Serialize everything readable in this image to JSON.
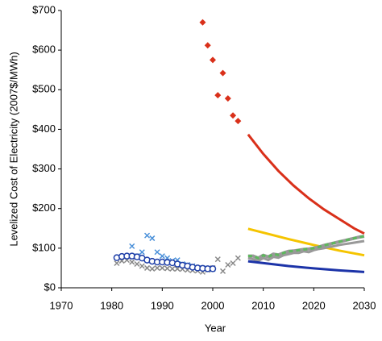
{
  "chart_data": {
    "type": "scatter",
    "ylabel": "Levelized Cost of Electricity (2007$/MWh)",
    "xlabel": "Year",
    "xlim": [
      1970,
      2030
    ],
    "xticks": [
      1970,
      1980,
      1990,
      2000,
      2010,
      2020,
      2030
    ],
    "ylim": [
      0,
      700
    ],
    "yticks": [
      {
        "value": 0,
        "label": "$0"
      },
      {
        "value": 100,
        "label": "$100"
      },
      {
        "value": 200,
        "label": "$200"
      },
      {
        "value": 300,
        "label": "$300"
      },
      {
        "value": 400,
        "label": "$400"
      },
      {
        "value": 500,
        "label": "$500"
      },
      {
        "value": 600,
        "label": "$600"
      },
      {
        "value": 700,
        "label": "$700"
      }
    ],
    "series": [
      {
        "marker": "diamond",
        "color": "#d9301a",
        "x": [
          1998,
          1999,
          2000,
          2001,
          2002,
          2003,
          2004,
          2005
        ],
        "values": [
          670,
          612,
          575,
          486,
          542,
          478,
          435,
          421
        ]
      },
      {
        "marker": "x",
        "color": "#888888",
        "x": [
          1981,
          1982,
          1983,
          1984,
          1985,
          1986,
          1987,
          1988,
          1989,
          1990,
          1991,
          1992,
          1993,
          1994,
          1995,
          1996,
          1997,
          1998,
          1999,
          2000,
          2001,
          2002,
          2003,
          2004,
          2005
        ],
        "values": [
          62,
          68,
          70,
          65,
          60,
          55,
          50,
          48,
          50,
          50,
          49,
          48,
          48,
          47,
          45,
          44,
          43,
          40,
          45,
          50,
          72,
          42,
          58,
          62,
          75
        ]
      },
      {
        "marker": "x",
        "color": "#4a90d9",
        "x": [
          1984,
          1985,
          1986,
          1987,
          1988,
          1989,
          1990,
          1991,
          1992,
          1993,
          1994,
          1995,
          1996,
          1997,
          1998,
          1999,
          2000
        ],
        "values": [
          105,
          80,
          90,
          132,
          125,
          90,
          80,
          75,
          68,
          70,
          60,
          58,
          55,
          50,
          50,
          48,
          47
        ]
      },
      {
        "marker": "circle",
        "color": "#1f3fa8",
        "x": [
          1981,
          1982,
          1983,
          1984,
          1985,
          1986,
          1987,
          1988,
          1989,
          1990,
          1991,
          1992,
          1993,
          1994,
          1995,
          1996,
          1997,
          1998,
          1999,
          2000
        ],
        "values": [
          76,
          79,
          80,
          80,
          78,
          75,
          70,
          67,
          65,
          65,
          64,
          63,
          60,
          57,
          55,
          52,
          50,
          49,
          48,
          48
        ]
      },
      {
        "marker": "line",
        "color": "#d9301a",
        "x": [
          2007,
          2010,
          2013,
          2016,
          2019,
          2022,
          2025,
          2028,
          2030
        ],
        "values": [
          387,
          338,
          295,
          258,
          226,
          198,
          174,
          150,
          137
        ]
      },
      {
        "marker": "line",
        "color": "#f5c400",
        "x": [
          2007,
          2015,
          2020,
          2025,
          2030
        ],
        "values": [
          149,
          123,
          108,
          94,
          82
        ]
      },
      {
        "marker": "line",
        "color": "#999999",
        "x": [
          2007,
          2008,
          2009,
          2010,
          2011,
          2012,
          2013,
          2014,
          2015,
          2016,
          2017,
          2018,
          2019,
          2020,
          2021,
          2022,
          2023,
          2024,
          2025,
          2026,
          2027,
          2028,
          2029,
          2030
        ],
        "values": [
          75,
          72,
          68,
          75,
          70,
          78,
          76,
          82,
          85,
          88,
          88,
          92,
          90,
          95,
          98,
          100,
          103,
          105,
          108,
          110,
          112,
          114,
          116,
          118
        ]
      },
      {
        "marker": "dashed-line",
        "color": "#5cb85c",
        "casing": "#999999",
        "x": [
          2007,
          2008,
          2009,
          2010,
          2011,
          2012,
          2013,
          2014,
          2015,
          2016,
          2017,
          2018,
          2019,
          2020,
          2021,
          2022,
          2023,
          2024,
          2025,
          2026,
          2027,
          2028,
          2029,
          2030
        ],
        "values": [
          80,
          80,
          75,
          82,
          78,
          85,
          83,
          88,
          92,
          93,
          95,
          97,
          98,
          100,
          103,
          107,
          110,
          113,
          116,
          119,
          122,
          125,
          128,
          130
        ]
      },
      {
        "marker": "line",
        "color": "#1c33a8",
        "x": [
          2007,
          2015,
          2020,
          2025,
          2030
        ],
        "values": [
          67,
          55,
          49,
          44,
          40
        ]
      }
    ]
  }
}
